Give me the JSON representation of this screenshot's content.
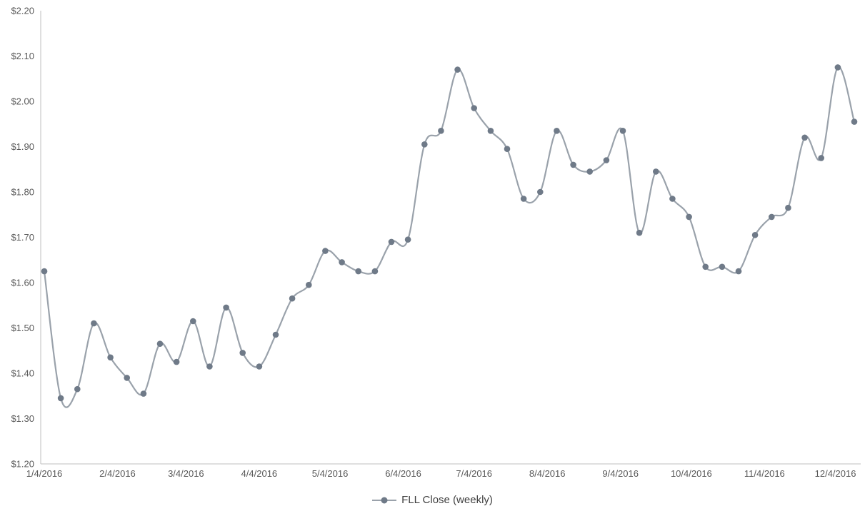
{
  "chart": {
    "colors": {
      "line": "#9aa2ab",
      "marker": "#6f7a88",
      "axis": "#bfbfbf",
      "tick_text": "#595959",
      "legend_text": "#404040"
    }
  },
  "chart_data": {
    "type": "line",
    "title": "",
    "xlabel": "",
    "ylabel": "",
    "grid": false,
    "legend_position": "bottom",
    "marker": "circle",
    "smooth": true,
    "ylim": [
      1.2,
      2.2
    ],
    "y_tick_step": 0.1,
    "y_tick_prefix": "$",
    "x_tick_labels": [
      "1/4/2016",
      "2/4/2016",
      "3/4/2016",
      "4/4/2016",
      "5/4/2016",
      "6/4/2016",
      "7/4/2016",
      "8/4/2016",
      "9/4/2016",
      "10/4/2016",
      "11/4/2016",
      "12/4/2016"
    ],
    "x_tick_day_offsets": [
      0,
      31,
      60,
      91,
      121,
      152,
      182,
      213,
      244,
      274,
      305,
      335
    ],
    "x_interval_days": 7,
    "series": [
      {
        "name": "FLL Close (weekly)",
        "values": [
          1.625,
          1.345,
          1.365,
          1.51,
          1.435,
          1.39,
          1.355,
          1.465,
          1.425,
          1.515,
          1.415,
          1.545,
          1.445,
          1.415,
          1.485,
          1.565,
          1.595,
          1.67,
          1.645,
          1.625,
          1.625,
          1.69,
          1.695,
          1.905,
          1.935,
          2.07,
          1.985,
          1.935,
          1.895,
          1.785,
          1.8,
          1.935,
          1.86,
          1.845,
          1.87,
          1.935,
          1.71,
          1.845,
          1.785,
          1.745,
          1.635,
          1.635,
          1.625,
          1.705,
          1.745,
          1.765,
          1.92,
          1.875,
          2.075,
          1.955
        ]
      }
    ]
  }
}
